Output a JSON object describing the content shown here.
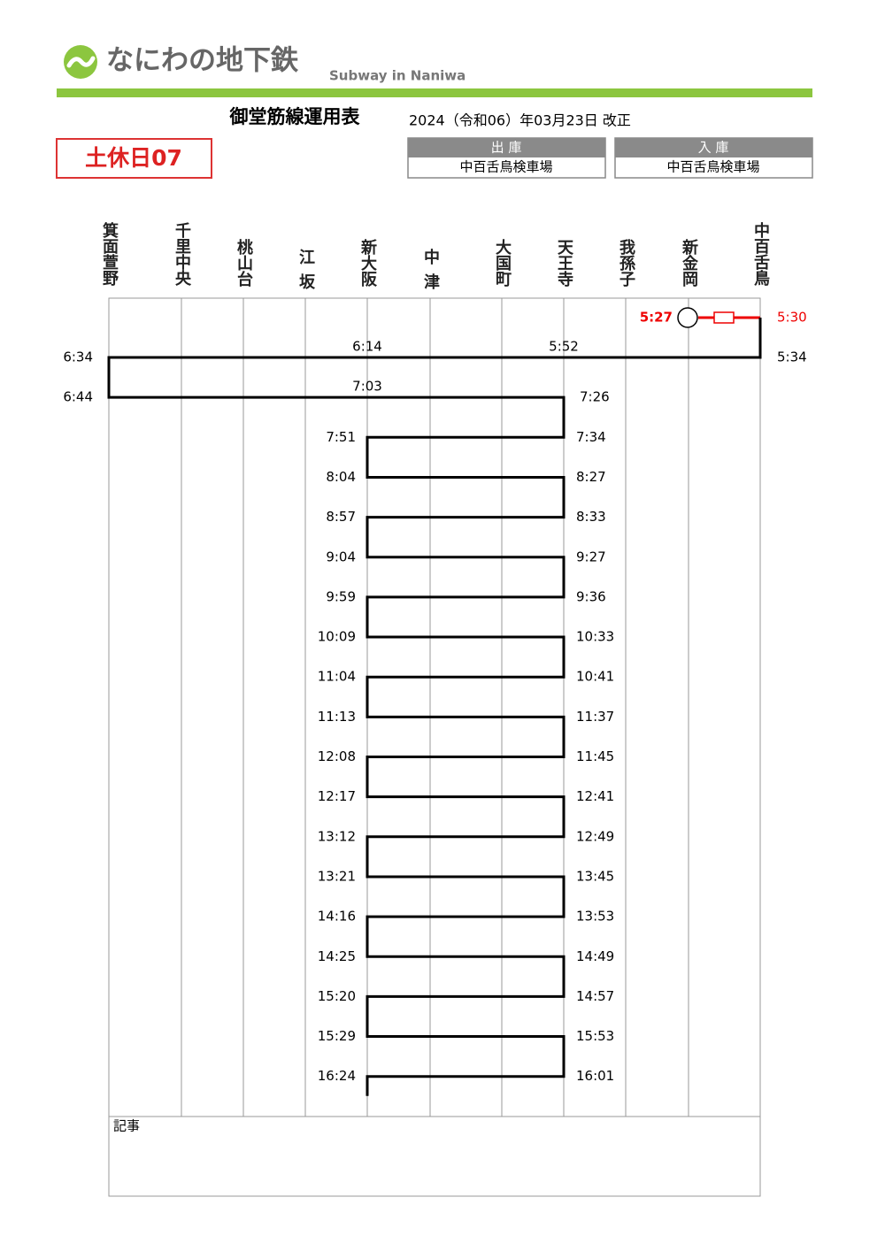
{
  "header": {
    "logo_text": "なにわの地下鉄",
    "logo_subtitle": "Subway in Naniwa"
  },
  "title": "御堂筋線運用表",
  "revision": "2024（令和06）年03月23日 改正",
  "badge": "土休日07",
  "depot_out": {
    "label": "出 庫",
    "place": "中百舌鳥検車場"
  },
  "depot_in": {
    "label": "入 庫",
    "place": "中百舌鳥検車場"
  },
  "stations": [
    "箕面萱野",
    "千里中央",
    "桃山台",
    "江坂",
    "新大阪",
    "中津",
    "大国町",
    "天王寺",
    "我孫子",
    "新金岡",
    "中百舌鳥"
  ],
  "diagram": {
    "depot_departure": "5:27",
    "depot_arrival": "5:30",
    "first_run": [
      "5:34",
      "5:52",
      "6:14",
      "6:34"
    ],
    "second_run": [
      "6:44",
      "7:03",
      "7:26"
    ],
    "left_times": [
      "7:51",
      "8:04",
      "8:57",
      "9:04",
      "9:59",
      "10:09",
      "11:04",
      "11:13",
      "12:08",
      "12:17",
      "13:12",
      "13:21",
      "14:16",
      "14:25",
      "15:20",
      "15:29",
      "16:24"
    ],
    "right_times": [
      "7:34",
      "8:27",
      "8:33",
      "9:27",
      "9:36",
      "10:33",
      "10:41",
      "11:37",
      "11:45",
      "12:41",
      "12:49",
      "13:45",
      "13:53",
      "14:49",
      "14:57",
      "15:53",
      "16:01"
    ]
  },
  "notes_label": "記事"
}
